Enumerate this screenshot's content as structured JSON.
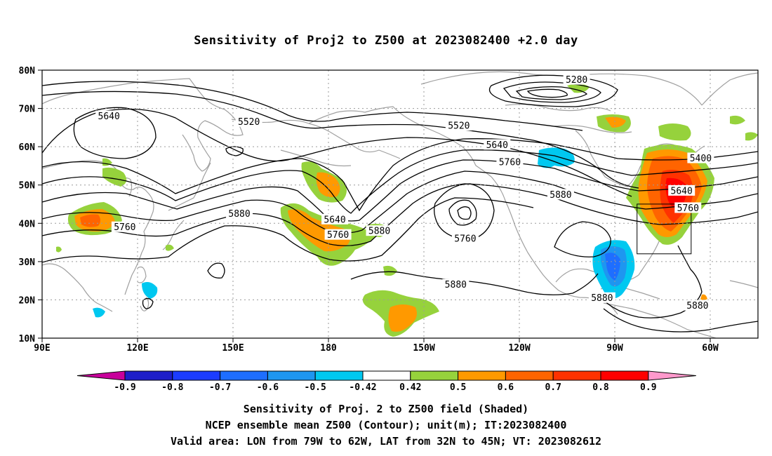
{
  "title": "Sensitivity of Proj2 to Z500 at 2023082400 +2.0 day",
  "axes": {
    "lat_labels": [
      "80N",
      "70N",
      "60N",
      "50N",
      "40N",
      "30N",
      "20N",
      "10N"
    ],
    "lon_labels": [
      "90E",
      "120E",
      "150E",
      "180",
      "150W",
      "120W",
      "90W",
      "60W"
    ]
  },
  "contour_labels": [
    {
      "text": "5640",
      "lon": 111,
      "lat": 68
    },
    {
      "text": "5520",
      "lon": 155,
      "lat": 66.5
    },
    {
      "text": "5280",
      "lon": -102,
      "lat": 77.5
    },
    {
      "text": "5520",
      "lon": -139,
      "lat": 65.5
    },
    {
      "text": "5640",
      "lon": -127,
      "lat": 60.5
    },
    {
      "text": "5760",
      "lon": -123,
      "lat": 56
    },
    {
      "text": "5400",
      "lon": -63,
      "lat": 57
    },
    {
      "text": "5640",
      "lon": -69,
      "lat": 48.5
    },
    {
      "text": "5760",
      "lon": -67,
      "lat": 44
    },
    {
      "text": "5880",
      "lon": -107,
      "lat": 47.5
    },
    {
      "text": "5880",
      "lon": 152,
      "lat": 42.5
    },
    {
      "text": "5640",
      "lon": -178,
      "lat": 41
    },
    {
      "text": "5760",
      "lon": -177,
      "lat": 37
    },
    {
      "text": "5880",
      "lon": -164,
      "lat": 38
    },
    {
      "text": "5760",
      "lon": -137,
      "lat": 36
    },
    {
      "text": "5760",
      "lon": 116,
      "lat": 39
    },
    {
      "text": "5880",
      "lon": -140,
      "lat": 24
    },
    {
      "text": "5880",
      "lon": -94,
      "lat": 20.5
    },
    {
      "text": "5880",
      "lon": -64,
      "lat": 18.5
    }
  ],
  "colorbar": {
    "labels": [
      "-0.9",
      "-0.8",
      "-0.7",
      "-0.6",
      "-0.5",
      "-0.42",
      "0.42",
      "0.5",
      "0.6",
      "0.7",
      "0.8",
      "0.9"
    ],
    "colors": [
      "#c8009b",
      "#1e1ec8",
      "#1c3cff",
      "#1e6eff",
      "#1e96f0",
      "#00c8f0",
      "#ffffff",
      "#96d23c",
      "#ff9900",
      "#ff6400",
      "#ff3200",
      "#ff0000",
      "#ff99cc"
    ]
  },
  "captions": [
    "Sensitivity of Proj. 2 to Z500 field (Shaded)",
    "NCEP ensemble mean Z500 (Contour); unit(m); IT:2023082400",
    "Valid area: LON from 79W to 62W, LAT from 32N to 45N; VT: 2023082612"
  ]
}
